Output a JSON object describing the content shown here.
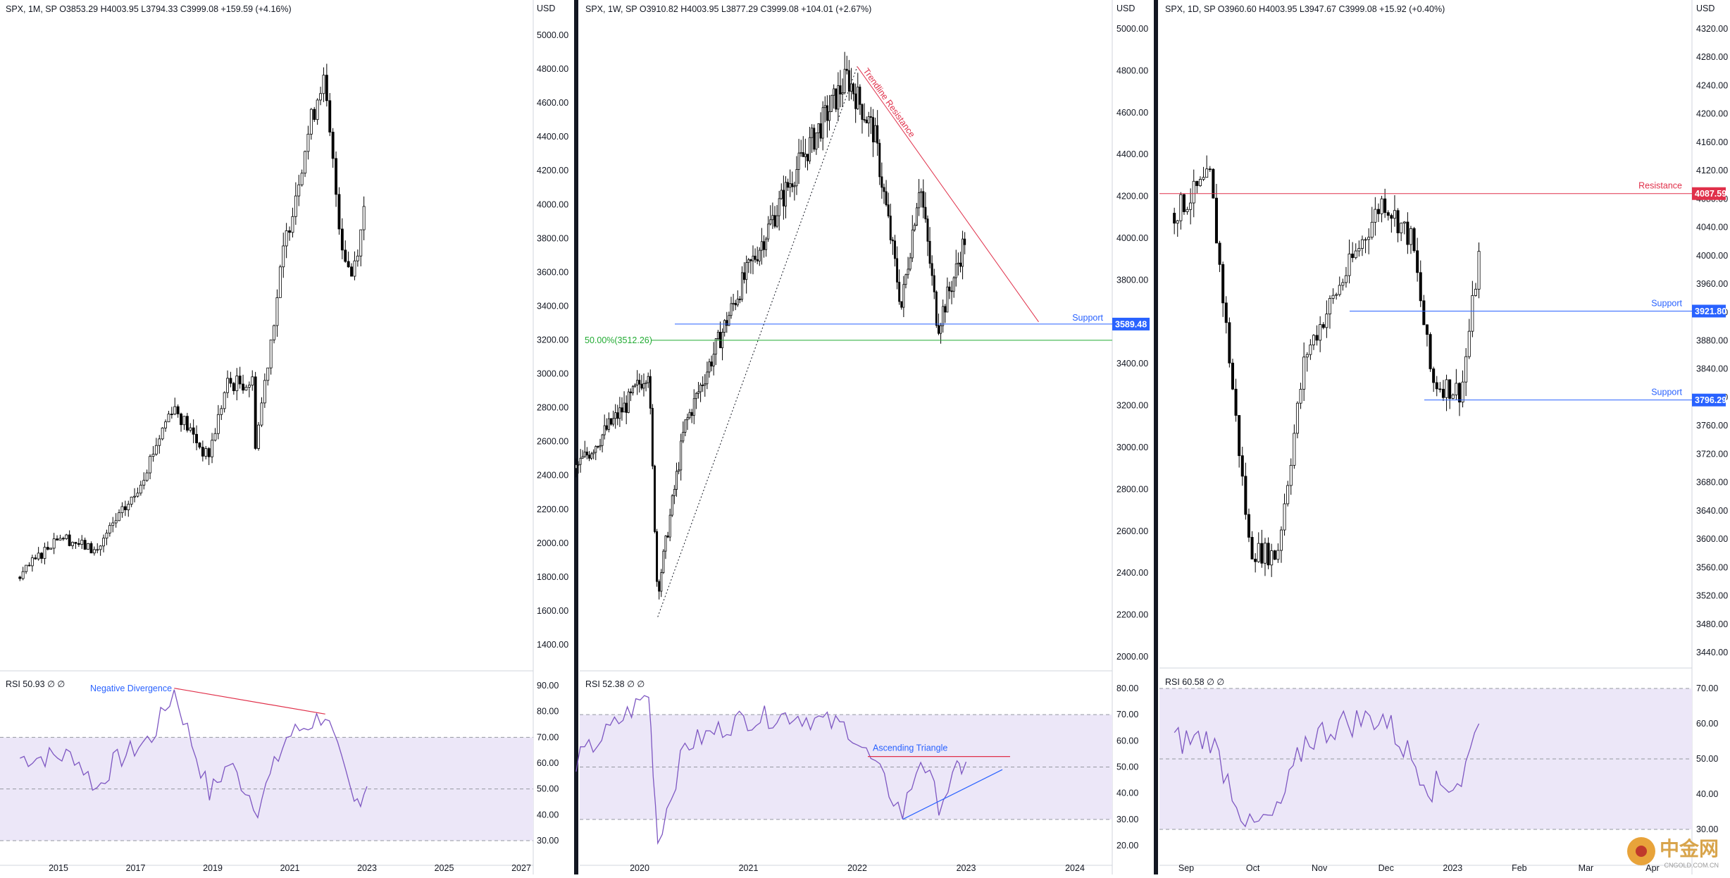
{
  "panes": [
    {
      "title": "SPX, 1M, SP  O3853.29  H4003.95  L3794.33  C3999.08  +159.59 (+4.16%)",
      "currency": "USD",
      "price_ticks": [
        "5000.00",
        "4800.00",
        "4600.00",
        "4400.00",
        "4200.00",
        "4000.00",
        "3800.00",
        "3600.00",
        "3400.00",
        "3200.00",
        "3000.00",
        "2800.00",
        "2600.00",
        "2400.00",
        "2200.00",
        "2000.00",
        "1800.00",
        "1600.00",
        "1400.00"
      ],
      "rsi_title": "RSI  50.93  ∅  ∅",
      "rsi_ticks": [
        "90.00",
        "80.00",
        "70.00",
        "60.00",
        "50.00",
        "40.00",
        "30.00"
      ],
      "time_ticks": [
        "2015",
        "2017",
        "2019",
        "2021",
        "2023",
        "2025",
        "2027"
      ],
      "annotations": {
        "rsi_label": "Negative Divergence"
      }
    },
    {
      "title": "SPX, 1W, SP  O3910.82  H4003.95  L3877.29  C3999.08  +104.01 (+2.67%)",
      "currency": "USD",
      "price_ticks": [
        "5000.00",
        "4800.00",
        "4600.00",
        "4400.00",
        "4200.00",
        "4000.00",
        "3800.00",
        "3600.00",
        "3400.00",
        "3200.00",
        "3000.00",
        "2800.00",
        "2600.00",
        "2400.00",
        "2200.00",
        "2000.00"
      ],
      "rsi_title": "RSI  52.38  ∅  ∅",
      "rsi_ticks": [
        "80.00",
        "70.00",
        "60.00",
        "50.00",
        "40.00",
        "30.00",
        "20.00"
      ],
      "time_ticks": [
        "2020",
        "2021",
        "2022",
        "2023",
        "2024"
      ],
      "annotations": {
        "trendline": "Trendline Resistance",
        "support_label": "Support",
        "support_tag": "3589.48",
        "fib_label": "50.00%(3512.26)",
        "rsi_label": "Ascending Triangle"
      }
    },
    {
      "title": "SPX, 1D, SP  O3960.60  H4003.95  L3947.67  C3999.08  +15.92 (+0.40%)",
      "currency": "USD",
      "price_ticks": [
        "4320.00",
        "4280.00",
        "4240.00",
        "4200.00",
        "4160.00",
        "4120.00",
        "4080.00",
        "4040.00",
        "4000.00",
        "3960.00",
        "3920.00",
        "3880.00",
        "3840.00",
        "3800.00",
        "3760.00",
        "3720.00",
        "3680.00",
        "3640.00",
        "3600.00",
        "3560.00",
        "3520.00",
        "3480.00",
        "3440.00"
      ],
      "rsi_title": "RSI  60.58  ∅  ∅",
      "rsi_ticks": [
        "70.00",
        "60.00",
        "50.00",
        "40.00",
        "30.00"
      ],
      "time_ticks": [
        "Sep",
        "Oct",
        "Nov",
        "Dec",
        "2023",
        "Feb",
        "Mar",
        "Apr"
      ],
      "annotations": {
        "resistance_label": "Resistance",
        "resistance_tag": "4087.59",
        "support1_label": "Support",
        "support1_tag": "3921.80",
        "support2_label": "Support",
        "support2_tag": "3796.29"
      }
    }
  ],
  "watermark": {
    "text": "中金网",
    "sub": "CNGOLD.COM.CN"
  },
  "colors": {
    "resistance": "#e0304a",
    "support": "#2962ff",
    "fib": "#22ab33",
    "rsi_line": "#7e57c2",
    "rsi_band": "#ece7f8",
    "candle": "#000000"
  },
  "chart_data": [
    {
      "type": "candlestick",
      "timeframe": "1M",
      "symbol": "SPX",
      "x_range": [
        "2014",
        "2027"
      ],
      "ylim": [
        1400,
        5000
      ],
      "y_scale": "linear",
      "grid": false,
      "approx_closes": [
        {
          "x": "2014-01",
          "y": 1800
        },
        {
          "x": "2015-01",
          "y": 2050
        },
        {
          "x": "2016-01",
          "y": 1950
        },
        {
          "x": "2016-06",
          "y": 2100
        },
        {
          "x": "2017-01",
          "y": 2280
        },
        {
          "x": "2018-01",
          "y": 2820
        },
        {
          "x": "2018-12",
          "y": 2500
        },
        {
          "x": "2019-06",
          "y": 2940
        },
        {
          "x": "2020-02",
          "y": 2950
        },
        {
          "x": "2020-03",
          "y": 2580
        },
        {
          "x": "2020-12",
          "y": 3750
        },
        {
          "x": "2021-06",
          "y": 4300
        },
        {
          "x": "2021-12",
          "y": 4770
        },
        {
          "x": "2022-06",
          "y": 3780
        },
        {
          "x": "2022-09",
          "y": 3580
        },
        {
          "x": "2022-12",
          "y": 3840
        },
        {
          "x": "2023-01",
          "y": 3999
        }
      ],
      "rsi": {
        "ylim": [
          25,
          95
        ],
        "bands": [
          70,
          30
        ],
        "midline": 50,
        "last": 50.93,
        "series": [
          {
            "x": "2014-01",
            "y": 62
          },
          {
            "x": "2015-06",
            "y": 63
          },
          {
            "x": "2016-01",
            "y": 50
          },
          {
            "x": "2016-06",
            "y": 60
          },
          {
            "x": "2017-06",
            "y": 70
          },
          {
            "x": "2018-01",
            "y": 88
          },
          {
            "x": "2018-12",
            "y": 48
          },
          {
            "x": "2019-06",
            "y": 60
          },
          {
            "x": "2020-03",
            "y": 43
          },
          {
            "x": "2020-12",
            "y": 70
          },
          {
            "x": "2021-12",
            "y": 79
          },
          {
            "x": "2022-09",
            "y": 44
          },
          {
            "x": "2023-01",
            "y": 51
          }
        ],
        "divergence": [
          {
            "x": "2018-01",
            "y": 89
          },
          {
            "x": "2021-12",
            "y": 79
          }
        ]
      }
    },
    {
      "type": "candlestick",
      "timeframe": "1W",
      "symbol": "SPX",
      "x_range": [
        "2019-06",
        "2024-06"
      ],
      "ylim": [
        2000,
        5000
      ],
      "y_scale": "linear",
      "grid": false,
      "levels": {
        "support": 3589.48,
        "fib_50": 3512.26
      },
      "approx_closes": [
        {
          "x": "2019-06",
          "y": 2900
        },
        {
          "x": "2019-12",
          "y": 3230
        },
        {
          "x": "2020-02",
          "y": 3380
        },
        {
          "x": "2020-03",
          "y": 2300
        },
        {
          "x": "2020-06",
          "y": 3100
        },
        {
          "x": "2020-12",
          "y": 3750
        },
        {
          "x": "2021-06",
          "y": 4300
        },
        {
          "x": "2021-12",
          "y": 4770
        },
        {
          "x": "2022-03",
          "y": 4500
        },
        {
          "x": "2022-06",
          "y": 3670
        },
        {
          "x": "2022-08",
          "y": 4280
        },
        {
          "x": "2022-10",
          "y": 3580
        },
        {
          "x": "2022-12",
          "y": 3840
        },
        {
          "x": "2023-01",
          "y": 3999
        }
      ],
      "trendline_support": [
        {
          "x": "2020-03",
          "y": 2190
        },
        {
          "x": "2022-01",
          "y": 4820
        }
      ],
      "trendline_resistance": [
        {
          "x": "2022-01",
          "y": 4820
        },
        {
          "x": "2023-09",
          "y": 3600
        }
      ],
      "rsi": {
        "ylim": [
          15,
          85
        ],
        "bands": [
          70,
          30
        ],
        "midline": 50,
        "last": 52.38,
        "series": [
          {
            "x": "2019-06",
            "y": 52
          },
          {
            "x": "2020-02",
            "y": 78
          },
          {
            "x": "2020-03",
            "y": 22
          },
          {
            "x": "2020-06",
            "y": 58
          },
          {
            "x": "2020-12",
            "y": 68
          },
          {
            "x": "2021-06",
            "y": 70
          },
          {
            "x": "2021-12",
            "y": 65
          },
          {
            "x": "2022-03",
            "y": 50
          },
          {
            "x": "2022-06",
            "y": 32
          },
          {
            "x": "2022-08",
            "y": 54
          },
          {
            "x": "2022-10",
            "y": 36
          },
          {
            "x": "2022-12",
            "y": 48
          },
          {
            "x": "2023-01",
            "y": 52
          }
        ],
        "triangle_top": 54,
        "triangle_bottom": [
          {
            "x": "2022-06",
            "y": 30
          },
          {
            "x": "2023-05",
            "y": 49
          }
        ]
      }
    },
    {
      "type": "candlestick",
      "timeframe": "1D",
      "symbol": "SPX",
      "x_range": [
        "2022-08-25",
        "2023-04-15"
      ],
      "ylim": [
        3420,
        4340
      ],
      "y_scale": "linear",
      "grid": false,
      "levels": {
        "resistance": 4087.59,
        "support_1": 3921.8,
        "support_2": 3796.29
      },
      "approx_closes": [
        {
          "x": "2022-08-26",
          "y": 4060
        },
        {
          "x": "2022-09-12",
          "y": 4110
        },
        {
          "x": "2022-09-30",
          "y": 3585
        },
        {
          "x": "2022-10-12",
          "y": 3577
        },
        {
          "x": "2022-10-25",
          "y": 3860
        },
        {
          "x": "2022-11-10",
          "y": 3956
        },
        {
          "x": "2022-11-30",
          "y": 4080
        },
        {
          "x": "2022-12-13",
          "y": 4020
        },
        {
          "x": "2022-12-22",
          "y": 3822
        },
        {
          "x": "2023-01-05",
          "y": 3808
        },
        {
          "x": "2023-01-13",
          "y": 3999
        }
      ],
      "rsi": {
        "ylim": [
          25,
          75
        ],
        "bands": [
          70,
          30
        ],
        "midline": 50,
        "last": 60.58,
        "series": [
          {
            "x": "2022-08-26",
            "y": 55
          },
          {
            "x": "2022-09-12",
            "y": 56
          },
          {
            "x": "2022-09-30",
            "y": 30
          },
          {
            "x": "2022-10-12",
            "y": 34
          },
          {
            "x": "2022-10-25",
            "y": 55
          },
          {
            "x": "2022-11-10",
            "y": 60
          },
          {
            "x": "2022-11-30",
            "y": 62
          },
          {
            "x": "2022-12-22",
            "y": 42
          },
          {
            "x": "2023-01-05",
            "y": 44
          },
          {
            "x": "2023-01-13",
            "y": 60
          }
        ]
      }
    }
  ]
}
